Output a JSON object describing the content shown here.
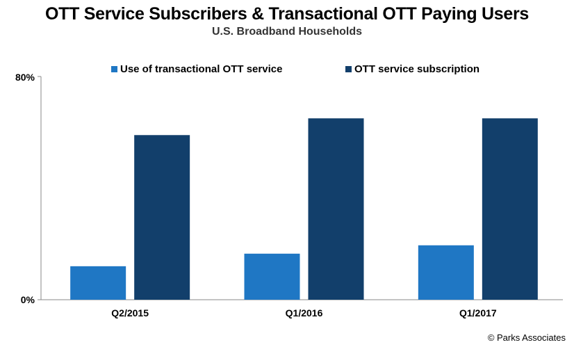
{
  "chart_data": {
    "type": "bar",
    "title": "OTT Service Subscribers & Transactional OTT Paying Users",
    "subtitle": "U.S. Broadband Households",
    "categories": [
      "Q2/2015",
      "Q1/2016",
      "Q1/2017"
    ],
    "series": [
      {
        "name": "Use of transactional OTT service",
        "values": [
          12,
          16.5,
          19.5
        ],
        "color": "#1f77c4"
      },
      {
        "name": "OTT service subscription",
        "values": [
          59,
          65,
          65
        ],
        "color": "#123f6b"
      }
    ],
    "ylim": [
      0,
      80
    ],
    "ytick_labels": [
      "80%",
      "0%"
    ],
    "grid": false,
    "legend": "top"
  },
  "source": "© Parks Associates"
}
